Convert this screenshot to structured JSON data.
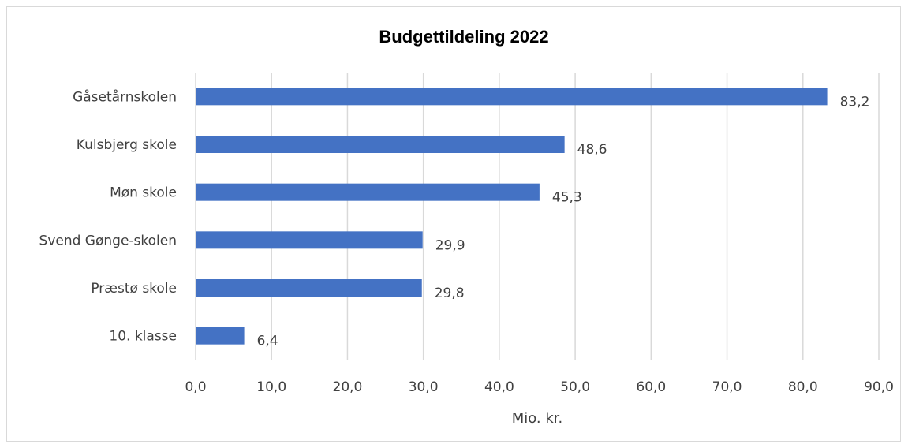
{
  "chart_data": {
    "type": "bar",
    "orientation": "horizontal",
    "title": "Budgettildeling 2022",
    "xlabel": "Mio. kr.",
    "ylabel": "",
    "categories": [
      "Gåsetårnskolen",
      "Kulsbjerg skole",
      "Møn skole",
      "Svend Gønge-skolen",
      "Præstø skole",
      "10. klasse"
    ],
    "values": [
      83.2,
      48.6,
      45.3,
      29.9,
      29.8,
      6.4
    ],
    "value_labels": [
      "83,2",
      "48,6",
      "45,3",
      "29,9",
      "29,8",
      "6,4"
    ],
    "xlim": [
      0,
      90
    ],
    "xticks": [
      0,
      10,
      20,
      30,
      40,
      50,
      60,
      70,
      80,
      90
    ],
    "xtick_labels": [
      "0,0",
      "10,0",
      "20,0",
      "30,0",
      "40,0",
      "50,0",
      "60,0",
      "70,0",
      "80,0",
      "90,0"
    ],
    "grid": "vertical",
    "legend": "none",
    "colors": {
      "bar": "#4472c4",
      "grid": "#d9d9d9",
      "text": "#404040",
      "title": "#000000"
    }
  }
}
